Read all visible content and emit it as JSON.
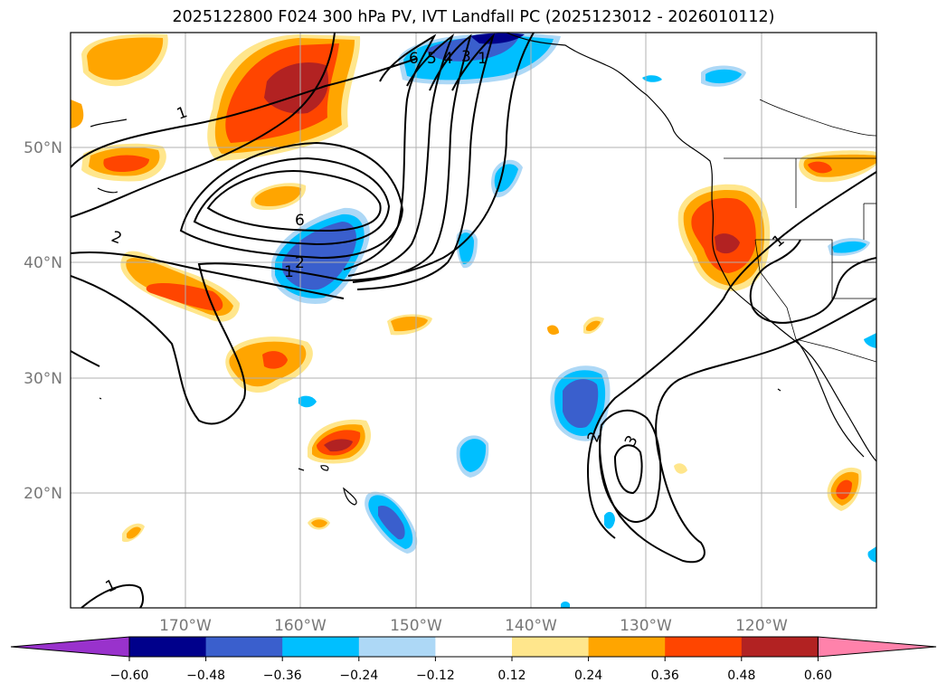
{
  "title": "2025122800 F024 300 hPa PV, IVT Landfall PC (2025123012 - 2026010112)",
  "map": {
    "lat_labels": [
      "50°N",
      "40°N",
      "30°N",
      "20°N"
    ],
    "lon_labels": [
      "170°W",
      "160°W",
      "150°W",
      "140°W",
      "130°W",
      "120°W"
    ],
    "gridlines": true,
    "contour_labels": [
      "1",
      "6",
      "5",
      "4",
      "3",
      "1",
      "6",
      "2",
      "1",
      "2",
      "3",
      "1",
      "1",
      "2"
    ]
  },
  "colorbar": {
    "tick_labels": [
      "−0.60",
      "−0.48",
      "−0.36",
      "−0.24",
      "−0.12",
      "0.12",
      "0.24",
      "0.36",
      "0.48",
      "0.60"
    ],
    "colors": [
      "#9932CC",
      "#00008B",
      "#3A5FCD",
      "#00BFFF",
      "#ADD8F6",
      "#FFFFFF",
      "#FFE68C",
      "#FFA500",
      "#FF4500",
      "#B22222",
      "#FF82AB"
    ],
    "extend": "both"
  },
  "shading_colors": {
    "pos1": "#FFE68C",
    "pos2": "#FFA500",
    "pos3": "#FF4500",
    "pos4": "#B22222",
    "neg1": "#ADD8F6",
    "neg2": "#00BFFF",
    "neg3": "#3A5FCD",
    "neg4": "#00008B"
  }
}
